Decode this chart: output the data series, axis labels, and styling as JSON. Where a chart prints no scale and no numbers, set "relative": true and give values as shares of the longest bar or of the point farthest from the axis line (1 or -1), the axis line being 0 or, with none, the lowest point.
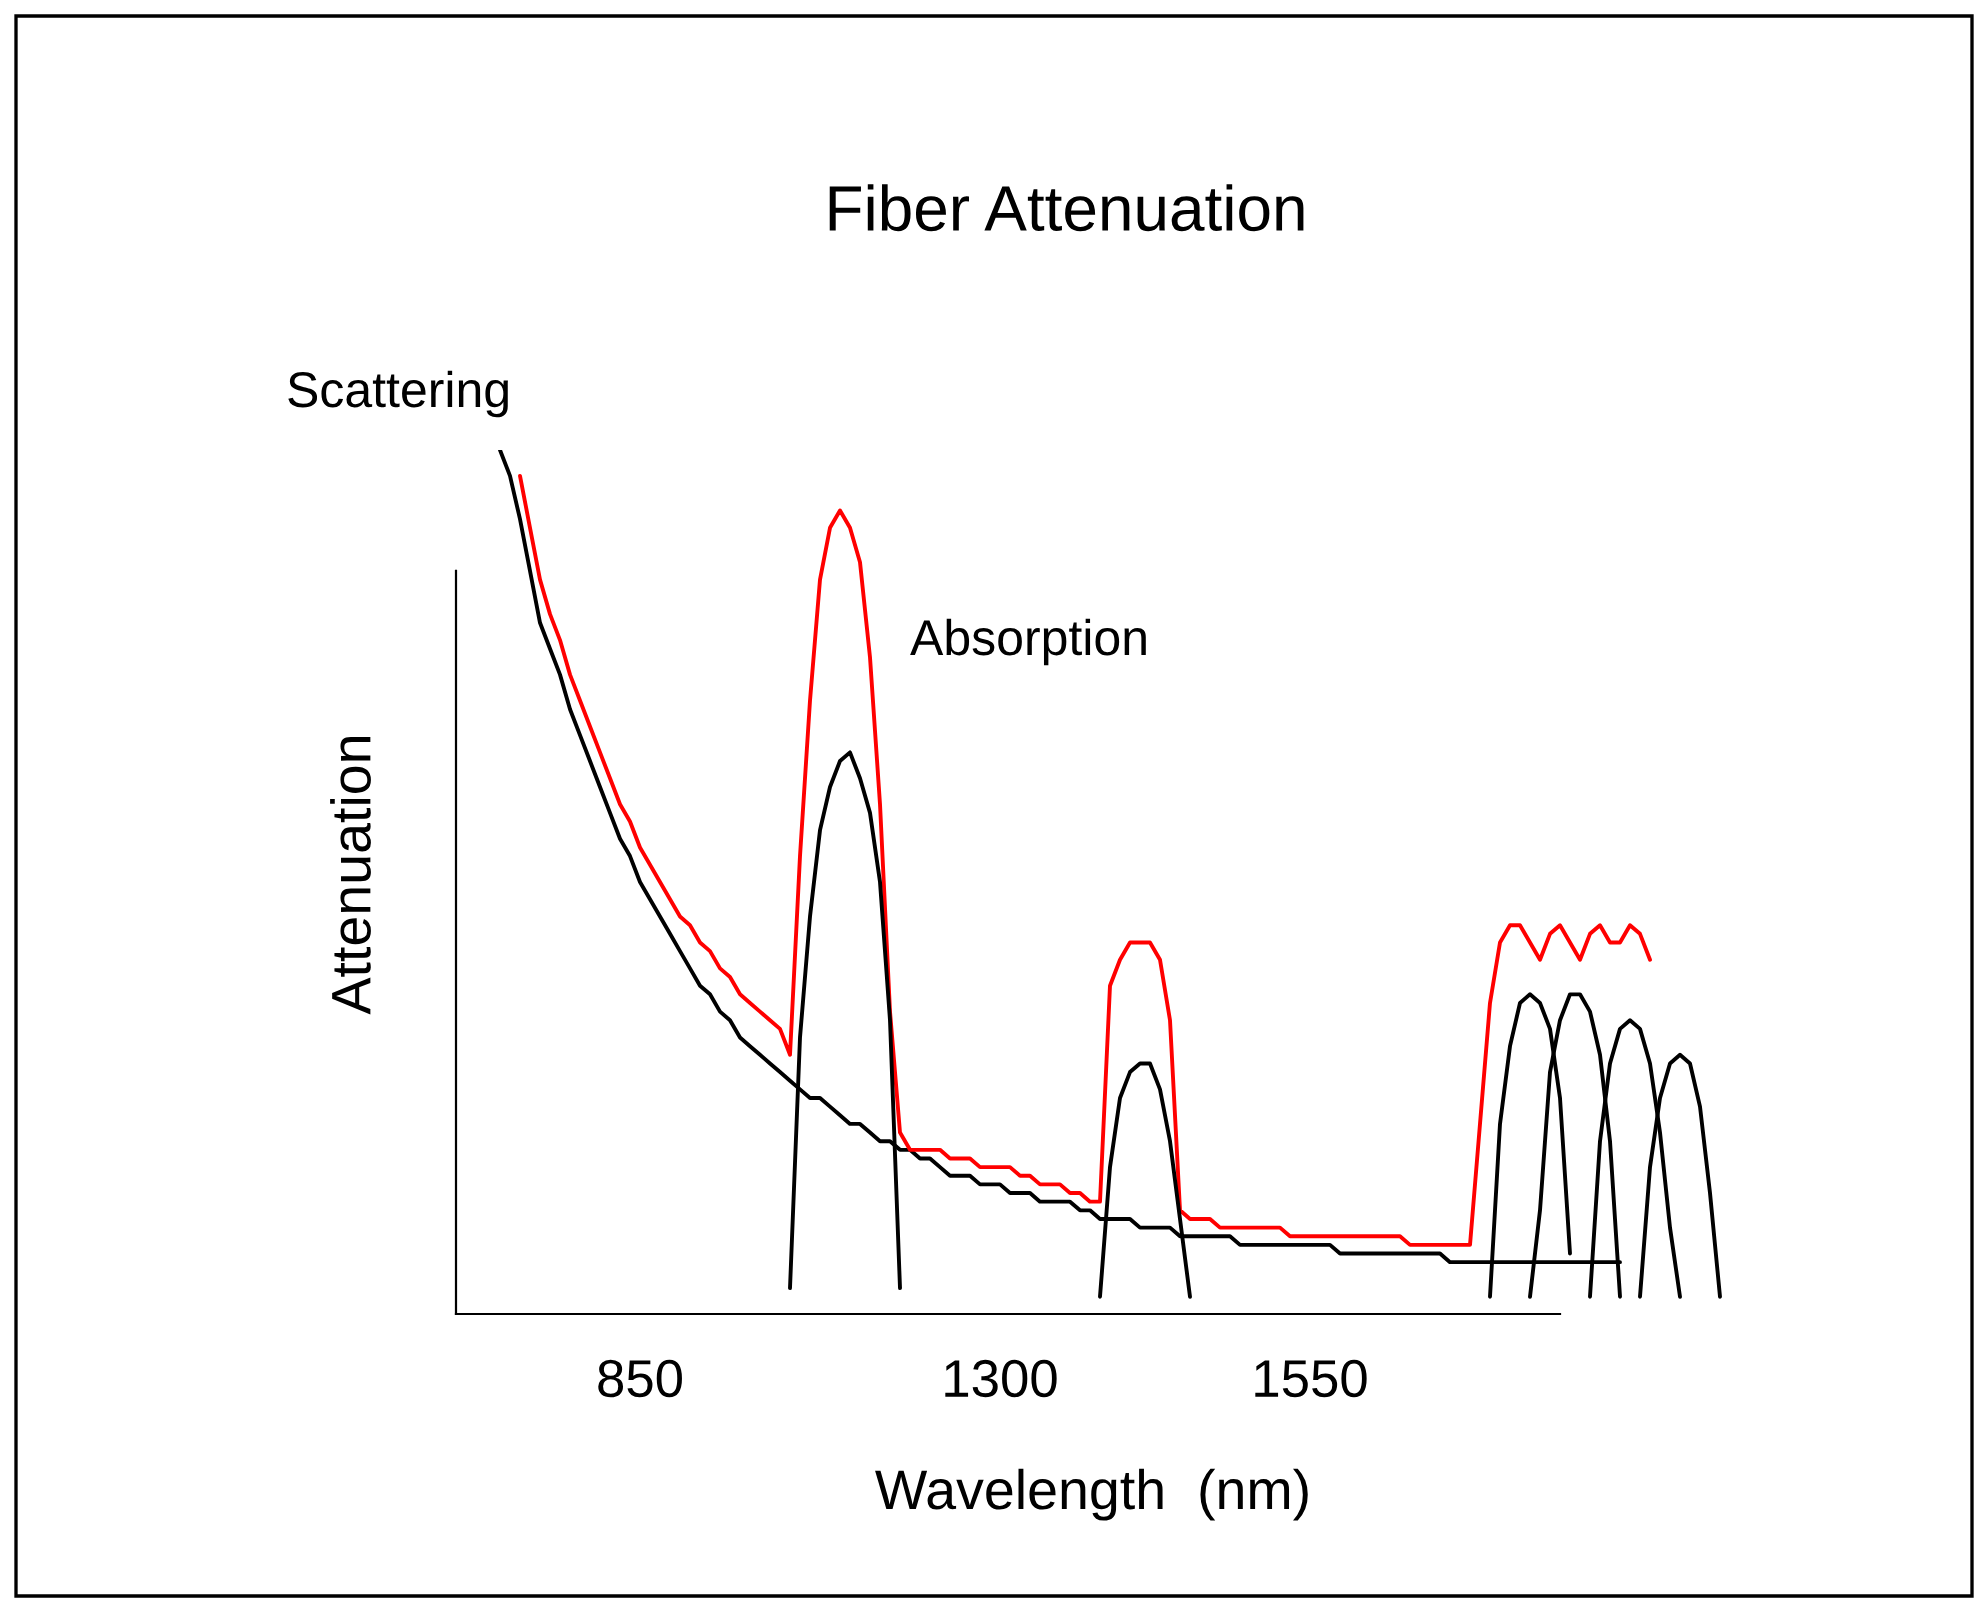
{
  "chart_data": {
    "type": "line",
    "title": "Fiber Attenuation",
    "xlabel": "Wavelength  (nm)",
    "ylabel": "Attenuation",
    "relative": true,
    "tick_labels": "x",
    "annotations": [
      "Scattering",
      "Absorption"
    ],
    "categories": [
      null,
      null,
      null,
      null,
      null,
      null,
      null,
      null,
      null,
      null,
      null,
      null,
      null,
      null,
      null,
      "850",
      null,
      null,
      null,
      null,
      null,
      null,
      null,
      null,
      null,
      null,
      null,
      null,
      null,
      null,
      null,
      null,
      null,
      null,
      null,
      null,
      null,
      null,
      null,
      null,
      null,
      null,
      null,
      null,
      null,
      null,
      null,
      null,
      null,
      null,
      null,
      "1300",
      null,
      null,
      null,
      null,
      null,
      null,
      null,
      null,
      null,
      null,
      null,
      null,
      null,
      null,
      null,
      null,
      null,
      null,
      null,
      null,
      null,
      null,
      null,
      null,
      null,
      null,
      null,
      null,
      null,
      null,
      "1550",
      null,
      null,
      null,
      null,
      null,
      null,
      null,
      null,
      null,
      null,
      null,
      null,
      null,
      null,
      null,
      null,
      null,
      null,
      null,
      null,
      null,
      null,
      null,
      null,
      null,
      null,
      null,
      null,
      null,
      null,
      null,
      null,
      null,
      null,
      null,
      null,
      null,
      null,
      null,
      null,
      null
    ],
    "series": [
      {
        "color": "#000000",
        "values": [
          null,
          1.0,
          0.97,
          0.92,
          0.86,
          0.8,
          0.77,
          0.74,
          0.7,
          0.67,
          0.64,
          0.61,
          0.58,
          0.55,
          0.53,
          0.5,
          0.48,
          0.46,
          0.44,
          0.42,
          0.4,
          0.38,
          0.37,
          0.35,
          0.34,
          0.32,
          0.31,
          0.3,
          0.29,
          0.28,
          0.27,
          0.26,
          0.25,
          0.25,
          0.24,
          0.23,
          0.22,
          0.22,
          0.21,
          0.2,
          0.2,
          0.19,
          0.19,
          0.18,
          0.18,
          0.17,
          0.16,
          0.16,
          0.16,
          0.15,
          0.15,
          0.15,
          0.14,
          0.14,
          0.14,
          0.13,
          0.13,
          0.13,
          0.13,
          0.12,
          0.12,
          0.11,
          0.11,
          0.11,
          0.11,
          0.1,
          0.1,
          0.1,
          0.1,
          0.09,
          0.09,
          0.09,
          0.09,
          0.09,
          0.09,
          0.08,
          0.08,
          0.08,
          0.08,
          0.08,
          0.08,
          0.08,
          0.08,
          0.08,
          0.08,
          0.07,
          0.07,
          0.07,
          0.07,
          0.07,
          0.07,
          0.07,
          0.07,
          0.07,
          0.07,
          0.07,
          0.06,
          0.06,
          0.06,
          0.06,
          0.06,
          0.06,
          0.06,
          0.06,
          0.06,
          0.06,
          0.06,
          0.06,
          0.06,
          0.06,
          0.06,
          0.06,
          0.06,
          0.06,
          null,
          null,
          null,
          null,
          null,
          null,
          null,
          null,
          null,
          null
        ]
      },
      {
        "color": "#ff0000",
        "values": [
          null,
          null,
          null,
          0.97,
          0.91,
          0.85,
          0.81,
          0.78,
          0.74,
          0.71,
          0.68,
          0.65,
          0.62,
          0.59,
          0.57,
          0.54,
          0.52,
          0.5,
          0.48,
          0.46,
          0.45,
          0.43,
          0.42,
          0.4,
          0.39,
          0.37,
          0.36,
          0.35,
          0.34,
          0.33,
          0.3,
          0.53,
          0.71,
          0.85,
          0.91,
          0.93,
          0.91,
          0.87,
          0.76,
          0.59,
          0.35,
          0.21,
          0.19,
          0.19,
          0.19,
          0.19,
          0.18,
          0.18,
          0.18,
          0.17,
          0.17,
          0.17,
          0.17,
          0.16,
          0.16,
          0.15,
          0.15,
          0.15,
          0.14,
          0.14,
          0.13,
          0.13,
          0.38,
          0.41,
          0.43,
          0.43,
          0.43,
          0.41,
          0.34,
          0.12,
          0.11,
          0.11,
          0.11,
          0.1,
          0.1,
          0.1,
          0.1,
          0.1,
          0.1,
          0.1,
          0.09,
          0.09,
          0.09,
          0.09,
          0.09,
          0.09,
          0.09,
          0.09,
          0.09,
          0.09,
          0.09,
          0.09,
          0.08,
          0.08,
          0.08,
          0.08,
          0.08,
          0.08,
          0.08,
          0.22,
          0.36,
          0.43,
          0.45,
          0.45,
          0.43,
          0.41,
          0.44,
          0.45,
          0.43,
          0.41,
          0.44,
          0.45,
          0.43,
          0.43,
          0.45,
          0.44,
          0.41,
          null,
          null,
          null,
          null,
          null,
          null,
          null
        ]
      },
      {
        "color": "#000000",
        "values": [
          null,
          null,
          null,
          null,
          null,
          null,
          null,
          null,
          null,
          null,
          null,
          null,
          null,
          null,
          null,
          null,
          null,
          null,
          null,
          null,
          null,
          null,
          null,
          null,
          null,
          null,
          null,
          null,
          null,
          null,
          0.03,
          0.32,
          0.46,
          0.56,
          0.61,
          0.64,
          0.65,
          0.62,
          0.58,
          0.5,
          0.34,
          0.03,
          null,
          null,
          null,
          null,
          null,
          null,
          null,
          null,
          null,
          null,
          null,
          null,
          null,
          null,
          null,
          null,
          null,
          null,
          null,
          0.02,
          0.17,
          0.25,
          0.28,
          0.29,
          0.29,
          0.26,
          0.2,
          0.11,
          0.02,
          null,
          null,
          null,
          null,
          null,
          null,
          null,
          null,
          null,
          null,
          null,
          null,
          null,
          null,
          null,
          null,
          null,
          null,
          null,
          null,
          null,
          null,
          null,
          null,
          null,
          null,
          null,
          null,
          null,
          0.02,
          0.22,
          0.31,
          0.36,
          0.37,
          0.36,
          0.33,
          0.25,
          0.07,
          null,
          null,
          null,
          null,
          null,
          null,
          null,
          null,
          null,
          null,
          null,
          null,
          null,
          null,
          null
        ]
      },
      {
        "color": "#000000",
        "values": [
          null,
          null,
          null,
          null,
          null,
          null,
          null,
          null,
          null,
          null,
          null,
          null,
          null,
          null,
          null,
          null,
          null,
          null,
          null,
          null,
          null,
          null,
          null,
          null,
          null,
          null,
          null,
          null,
          null,
          null,
          null,
          null,
          null,
          null,
          null,
          null,
          null,
          null,
          null,
          null,
          null,
          null,
          null,
          null,
          null,
          null,
          null,
          null,
          null,
          null,
          null,
          null,
          null,
          null,
          null,
          null,
          null,
          null,
          null,
          null,
          null,
          null,
          null,
          null,
          null,
          null,
          null,
          null,
          null,
          null,
          null,
          null,
          null,
          null,
          null,
          null,
          null,
          null,
          null,
          null,
          null,
          null,
          null,
          null,
          null,
          null,
          null,
          null,
          null,
          null,
          null,
          null,
          null,
          null,
          null,
          null,
          null,
          null,
          null,
          null,
          null,
          null,
          null,
          null,
          0.02,
          0.12,
          0.28,
          0.34,
          0.37,
          0.37,
          0.35,
          0.3,
          0.2,
          0.02,
          null,
          null,
          null,
          null,
          null,
          null,
          null,
          null,
          null,
          null
        ]
      },
      {
        "color": "#000000",
        "values": [
          null,
          null,
          null,
          null,
          null,
          null,
          null,
          null,
          null,
          null,
          null,
          null,
          null,
          null,
          null,
          null,
          null,
          null,
          null,
          null,
          null,
          null,
          null,
          null,
          null,
          null,
          null,
          null,
          null,
          null,
          null,
          null,
          null,
          null,
          null,
          null,
          null,
          null,
          null,
          null,
          null,
          null,
          null,
          null,
          null,
          null,
          null,
          null,
          null,
          null,
          null,
          null,
          null,
          null,
          null,
          null,
          null,
          null,
          null,
          null,
          null,
          null,
          null,
          null,
          null,
          null,
          null,
          null,
          null,
          null,
          null,
          null,
          null,
          null,
          null,
          null,
          null,
          null,
          null,
          null,
          null,
          null,
          null,
          null,
          null,
          null,
          null,
          null,
          null,
          null,
          null,
          null,
          null,
          null,
          null,
          null,
          null,
          null,
          null,
          null,
          null,
          null,
          null,
          null,
          null,
          null,
          null,
          null,
          null,
          null,
          0.02,
          0.2,
          0.29,
          0.33,
          0.34,
          0.33,
          0.29,
          0.21,
          0.1,
          0.02,
          null,
          null,
          null,
          null
        ]
      },
      {
        "color": "#000000",
        "values": [
          null,
          null,
          null,
          null,
          null,
          null,
          null,
          null,
          null,
          null,
          null,
          null,
          null,
          null,
          null,
          null,
          null,
          null,
          null,
          null,
          null,
          null,
          null,
          null,
          null,
          null,
          null,
          null,
          null,
          null,
          null,
          null,
          null,
          null,
          null,
          null,
          null,
          null,
          null,
          null,
          null,
          null,
          null,
          null,
          null,
          null,
          null,
          null,
          null,
          null,
          null,
          null,
          null,
          null,
          null,
          null,
          null,
          null,
          null,
          null,
          null,
          null,
          null,
          null,
          null,
          null,
          null,
          null,
          null,
          null,
          null,
          null,
          null,
          null,
          null,
          null,
          null,
          null,
          null,
          null,
          null,
          null,
          null,
          null,
          null,
          null,
          null,
          null,
          null,
          null,
          null,
          null,
          null,
          null,
          null,
          null,
          null,
          null,
          null,
          null,
          null,
          null,
          null,
          null,
          null,
          null,
          null,
          null,
          null,
          null,
          null,
          null,
          null,
          null,
          null,
          0.02,
          0.17,
          0.25,
          0.29,
          0.3,
          0.29,
          0.24,
          0.14,
          0.02
        ]
      }
    ]
  }
}
